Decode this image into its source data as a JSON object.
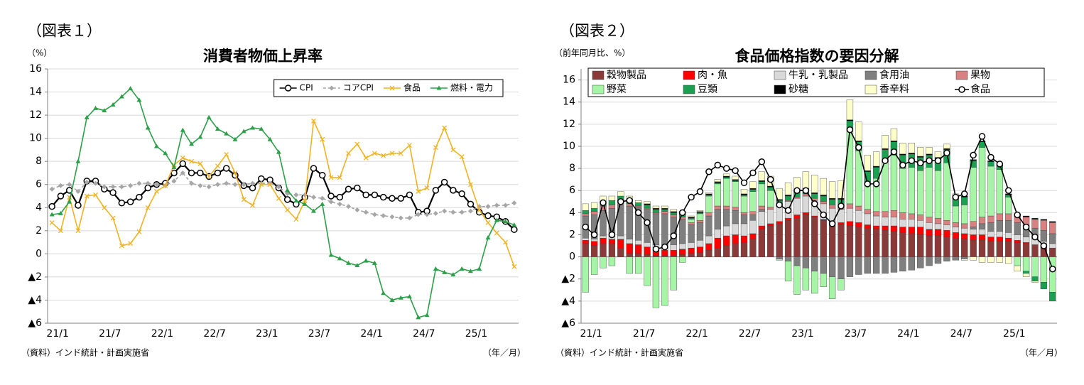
{
  "chart_data": [
    {
      "type": "line",
      "figure_label": "（図表１）",
      "unit_label": "（%）",
      "title": "消費者物価上昇率",
      "source": "（資料）インド統計・計画実施省",
      "x_axis_label": "（年／月）",
      "categories": [
        "21/1",
        null,
        null,
        null,
        null,
        null,
        "21/7",
        null,
        null,
        null,
        null,
        null,
        "22/1",
        null,
        null,
        null,
        null,
        null,
        "22/7",
        null,
        null,
        null,
        null,
        null,
        "23/1",
        null,
        null,
        null,
        null,
        null,
        "23/7",
        null,
        null,
        null,
        null,
        null,
        "24/1",
        null,
        null,
        null,
        null,
        null,
        "24/7",
        null,
        null,
        null,
        null,
        null,
        "25/1",
        null,
        null,
        null,
        null,
        null
      ],
      "ylim": [
        -6,
        16
      ],
      "yticks": [
        {
          "value": -6,
          "label": "▲6"
        },
        {
          "value": -4,
          "label": "▲4"
        },
        {
          "value": -2,
          "label": "▲2"
        },
        0,
        2,
        4,
        6,
        8,
        10,
        12,
        14,
        16
      ],
      "grid": true,
      "legend": "upper right",
      "series": [
        {
          "name": "CPI",
          "color": "#000000",
          "marker": "circle",
          "values": [
            4.1,
            5.0,
            5.5,
            4.2,
            6.3,
            6.3,
            5.6,
            5.3,
            4.4,
            4.5,
            4.9,
            5.7,
            6.0,
            6.1,
            7.0,
            7.8,
            7.0,
            7.0,
            6.7,
            7.0,
            7.4,
            6.8,
            5.9,
            5.7,
            6.5,
            6.4,
            5.7,
            4.7,
            4.3,
            4.9,
            7.4,
            6.8,
            5.0,
            4.9,
            5.6,
            5.7,
            5.1,
            5.1,
            4.9,
            4.8,
            4.8,
            5.1,
            3.6,
            3.7,
            5.5,
            6.2,
            5.5,
            5.2,
            4.3,
            3.6,
            3.3,
            3.2,
            2.8,
            2.1
          ]
        },
        {
          "name": "コアCPI",
          "color": "#a6a6a6",
          "marker": "diamond",
          "dash": true,
          "values": [
            5.6,
            5.9,
            6.0,
            5.4,
            6.2,
            6.1,
            5.8,
            5.8,
            5.8,
            5.9,
            6.1,
            6.1,
            6.0,
            5.9,
            6.3,
            7.0,
            6.1,
            5.9,
            5.8,
            6.0,
            6.1,
            6.0,
            6.0,
            6.1,
            6.1,
            6.1,
            5.8,
            5.2,
            5.1,
            5.1,
            4.9,
            4.8,
            4.5,
            4.3,
            4.1,
            3.8,
            3.6,
            3.4,
            3.3,
            3.2,
            3.1,
            3.1,
            3.4,
            3.4,
            3.5,
            3.7,
            3.6,
            3.6,
            3.7,
            4.1,
            4.1,
            4.2,
            4.2,
            4.4
          ]
        },
        {
          "name": "食品",
          "color": "#f0b323",
          "marker": "x",
          "values": [
            2.7,
            2.0,
            4.9,
            2.0,
            5.0,
            5.1,
            4.0,
            3.1,
            0.7,
            0.9,
            1.9,
            4.0,
            5.4,
            5.9,
            7.7,
            8.3,
            8.0,
            7.8,
            6.7,
            7.6,
            8.6,
            7.0,
            4.7,
            4.2,
            6.0,
            6.0,
            4.8,
            3.8,
            3.0,
            4.6,
            11.5,
            9.9,
            6.6,
            6.6,
            8.7,
            9.5,
            8.3,
            8.7,
            8.5,
            8.7,
            8.7,
            9.4,
            5.4,
            5.7,
            9.2,
            10.9,
            9.0,
            8.4,
            6.0,
            3.8,
            2.7,
            1.8,
            1.0,
            -1.1
          ]
        },
        {
          "name": "燃料・電力",
          "color": "#2ca048",
          "marker": "triangle",
          "values": [
            3.4,
            3.5,
            4.5,
            8.0,
            11.8,
            12.6,
            12.4,
            12.9,
            13.6,
            14.3,
            13.3,
            10.9,
            9.3,
            8.7,
            7.5,
            10.7,
            9.5,
            10.1,
            11.8,
            10.8,
            10.4,
            9.9,
            10.6,
            10.9,
            10.8,
            9.9,
            8.8,
            5.5,
            4.6,
            4.3,
            3.7,
            4.3,
            -0.1,
            -0.4,
            -0.8,
            -1.0,
            -0.6,
            -0.8,
            -3.4,
            -4.0,
            -3.8,
            -3.7,
            -5.5,
            -5.3,
            -1.3,
            -1.6,
            -1.8,
            -1.3,
            -1.5,
            -1.3,
            1.4,
            2.9,
            2.8,
            2.5
          ]
        }
      ]
    },
    {
      "type": "bar",
      "stacked": true,
      "figure_label": "（図表２）",
      "unit_label": "（前年同月比、%）",
      "title": "食品価格指数の要因分解",
      "source": "（資料）インド統計・計画実施省",
      "x_axis_label": "（年／月）",
      "categories": [
        "21/1",
        null,
        null,
        null,
        null,
        null,
        "21/7",
        null,
        null,
        null,
        null,
        null,
        "22/1",
        null,
        null,
        null,
        null,
        null,
        "22/7",
        null,
        null,
        null,
        null,
        null,
        "23/1",
        null,
        null,
        null,
        null,
        null,
        "23/7",
        null,
        null,
        null,
        null,
        null,
        "24/1",
        null,
        null,
        null,
        null,
        null,
        "24/7",
        null,
        null,
        null,
        null,
        null,
        "25/1",
        null,
        null,
        null,
        null,
        null
      ],
      "ylim": [
        -6,
        17
      ],
      "yticks": [
        {
          "value": -6,
          "label": "▲6"
        },
        {
          "value": -4,
          "label": "▲4"
        },
        {
          "value": -2,
          "label": "▲2"
        },
        0,
        2,
        4,
        6,
        8,
        10,
        12,
        14,
        16
      ],
      "grid": true,
      "legend": "top",
      "series": [
        {
          "name": "穀物製品",
          "color": "#8b3a3a",
          "values": [
            1.2,
            1.0,
            1.2,
            1.2,
            0.8,
            0.3,
            0.3,
            0.2,
            0.1,
            0.1,
            0.1,
            0.2,
            0.3,
            0.4,
            0.6,
            0.8,
            1.0,
            1.2,
            1.3,
            1.6,
            2.5,
            2.8,
            3.0,
            3.3,
            3.5,
            3.8,
            3.6,
            3.3,
            3.0,
            2.9,
            2.8,
            2.7,
            2.6,
            2.5,
            2.4,
            2.3,
            2.2,
            2.1,
            2.0,
            1.9,
            1.9,
            1.8,
            1.7,
            1.6,
            1.5,
            1.5,
            1.4,
            1.4,
            1.4,
            1.3,
            1.2,
            1.1,
            0.9,
            0.8
          ]
        },
        {
          "name": "肉・魚",
          "color": "#ff0000",
          "values": [
            0.3,
            0.4,
            0.5,
            0.4,
            0.8,
            0.9,
            0.8,
            0.7,
            0.6,
            0.5,
            0.5,
            0.5,
            0.5,
            0.5,
            0.6,
            0.9,
            0.9,
            0.8,
            0.6,
            0.5,
            0.3,
            0.2,
            0.2,
            0.2,
            0.3,
            0.2,
            0.1,
            0.1,
            0.1,
            0.2,
            0.4,
            0.4,
            0.3,
            0.3,
            0.4,
            0.5,
            0.5,
            0.6,
            0.7,
            0.6,
            0.6,
            0.6,
            0.5,
            0.5,
            0.5,
            0.5,
            0.4,
            0.4,
            0.3,
            0.2,
            0.1,
            0.0,
            0.0,
            0.0
          ]
        },
        {
          "name": "牛乳・乳製品",
          "color": "#d9d9d9",
          "values": [
            0.2,
            0.2,
            0.2,
            0.3,
            0.3,
            0.4,
            0.4,
            0.4,
            0.4,
            0.5,
            0.5,
            0.5,
            0.5,
            0.6,
            0.7,
            0.8,
            0.9,
            1.0,
            1.1,
            1.2,
            1.3,
            1.3,
            1.4,
            1.5,
            1.5,
            1.5,
            1.4,
            1.4,
            1.3,
            1.2,
            1.2,
            1.1,
            1.0,
            0.9,
            0.8,
            0.8,
            0.7,
            0.7,
            0.6,
            0.6,
            0.5,
            0.5,
            0.5,
            0.5,
            0.5,
            0.5,
            0.5,
            0.5,
            0.5,
            0.5,
            0.5,
            0.5,
            0.5,
            0.4
          ]
        },
        {
          "name": "食用油",
          "color": "#7f7f7f",
          "values": [
            2.0,
            2.2,
            2.3,
            2.5,
            2.8,
            3.0,
            3.0,
            3.0,
            2.8,
            2.8,
            2.5,
            2.2,
            1.6,
            1.6,
            1.8,
            1.8,
            1.5,
            1.2,
            0.8,
            0.5,
            0.2,
            0.0,
            -0.2,
            -0.4,
            -0.8,
            -1.0,
            -1.3,
            -1.5,
            -1.8,
            -2.0,
            -1.8,
            -1.6,
            -1.5,
            -1.5,
            -1.5,
            -1.4,
            -1.3,
            -1.2,
            -1.0,
            -0.8,
            -0.6,
            -0.4,
            -0.3,
            -0.2,
            0.2,
            0.5,
            0.8,
            1.0,
            1.1,
            1.1,
            1.0,
            1.0,
            1.0,
            0.9
          ]
        },
        {
          "name": "果物",
          "color": "#d98080",
          "values": [
            0.2,
            0.3,
            0.4,
            0.3,
            0.2,
            0.2,
            0.1,
            0.1,
            0.1,
            0.2,
            0.2,
            0.2,
            0.2,
            0.2,
            0.3,
            0.3,
            0.3,
            0.3,
            0.2,
            0.3,
            0.3,
            0.2,
            0.2,
            0.1,
            0.1,
            0.2,
            0.2,
            0.2,
            0.3,
            0.3,
            0.4,
            0.4,
            0.4,
            0.4,
            0.5,
            0.6,
            0.6,
            0.5,
            0.5,
            0.5,
            0.5,
            0.4,
            0.4,
            0.4,
            0.5,
            0.6,
            0.6,
            0.6,
            0.6,
            0.7,
            0.8,
            0.8,
            0.9,
            1.0
          ]
        },
        {
          "name": "野菜",
          "color": "#a6f5a6",
          "values": [
            -3.2,
            -1.6,
            -1.0,
            -0.8,
            0.2,
            -1.5,
            -1.5,
            -2.6,
            -4.6,
            -4.4,
            -3.0,
            -0.5,
            0.3,
            0.6,
            1.5,
            2.0,
            2.5,
            2.3,
            1.5,
            1.8,
            2.0,
            1.5,
            -0.1,
            -1.8,
            -2.6,
            -2.0,
            -2.0,
            -1.2,
            -2.0,
            -1.0,
            6.8,
            5.0,
            2.5,
            3.0,
            4.5,
            5.0,
            4.0,
            4.2,
            4.0,
            4.5,
            4.3,
            5.2,
            1.5,
            1.7,
            4.9,
            6.3,
            4.5,
            4.0,
            1.5,
            -0.8,
            -1.3,
            -1.8,
            -2.3,
            -3.2
          ]
        },
        {
          "name": "豆類",
          "color": "#1aa050",
          "values": [
            0.3,
            0.3,
            0.4,
            0.4,
            0.4,
            0.4,
            0.3,
            0.3,
            0.3,
            0.2,
            0.2,
            0.2,
            0.1,
            0.1,
            0.1,
            0.1,
            0.1,
            0.1,
            0.1,
            0.2,
            0.2,
            0.3,
            0.3,
            0.4,
            0.4,
            0.4,
            0.4,
            0.5,
            0.5,
            0.6,
            0.7,
            0.8,
            0.9,
            1.0,
            1.1,
            1.2,
            1.2,
            1.2,
            1.2,
            1.1,
            1.1,
            1.2,
            0.8,
            0.7,
            0.6,
            0.5,
            0.4,
            0.3,
            0.2,
            0.0,
            -0.2,
            -0.4,
            -0.6,
            -0.8
          ]
        },
        {
          "name": "砂糖",
          "color": "#000000",
          "values": [
            0.0,
            0.0,
            0.0,
            0.0,
            0.0,
            0.0,
            0.0,
            0.1,
            0.1,
            0.1,
            0.1,
            0.1,
            0.1,
            0.1,
            0.1,
            0.1,
            0.1,
            0.1,
            0.1,
            0.1,
            0.1,
            0.1,
            0.1,
            0.1,
            0.1,
            0.1,
            0.1,
            0.1,
            0.1,
            0.1,
            0.1,
            0.1,
            0.1,
            0.1,
            0.1,
            0.1,
            0.1,
            0.1,
            0.1,
            0.1,
            0.1,
            0.1,
            0.1,
            0.1,
            0.1,
            0.1,
            0.1,
            0.1,
            0.1,
            0.1,
            0.1,
            0.1,
            0.1,
            0.1
          ]
        },
        {
          "name": "香辛料",
          "color": "#ffffcc",
          "values": [
            0.6,
            0.5,
            0.5,
            0.4,
            0.4,
            0.3,
            0.2,
            0.2,
            0.2,
            0.2,
            0.2,
            0.2,
            0.1,
            0.1,
            0.1,
            0.2,
            0.2,
            0.3,
            0.4,
            0.6,
            0.8,
            0.9,
            1.0,
            1.1,
            1.3,
            1.5,
            1.6,
            1.5,
            1.5,
            1.6,
            1.8,
            1.7,
            1.4,
            1.3,
            1.2,
            1.1,
            1.0,
            0.9,
            0.8,
            0.6,
            0.5,
            0.4,
            0.2,
            -0.1,
            -0.3,
            -0.5,
            -0.5,
            -0.5,
            -0.6,
            -0.5,
            -0.3,
            -0.1,
            0.0,
            0.0
          ]
        },
        {
          "name": "食品",
          "type": "line",
          "color": "#000000",
          "marker": "circle",
          "values": [
            2.7,
            2.0,
            4.9,
            2.0,
            5.0,
            5.1,
            4.0,
            3.1,
            0.7,
            0.9,
            1.9,
            4.0,
            5.4,
            5.9,
            7.7,
            8.3,
            8.0,
            7.8,
            6.7,
            7.6,
            8.6,
            7.0,
            4.7,
            4.2,
            6.0,
            6.0,
            4.8,
            3.8,
            3.0,
            4.6,
            11.5,
            9.9,
            6.6,
            6.6,
            8.7,
            9.5,
            8.3,
            8.7,
            8.5,
            8.7,
            8.7,
            9.4,
            5.4,
            5.7,
            9.2,
            10.9,
            9.0,
            8.4,
            6.0,
            3.8,
            2.7,
            1.8,
            1.0,
            -1.1
          ]
        }
      ]
    }
  ]
}
